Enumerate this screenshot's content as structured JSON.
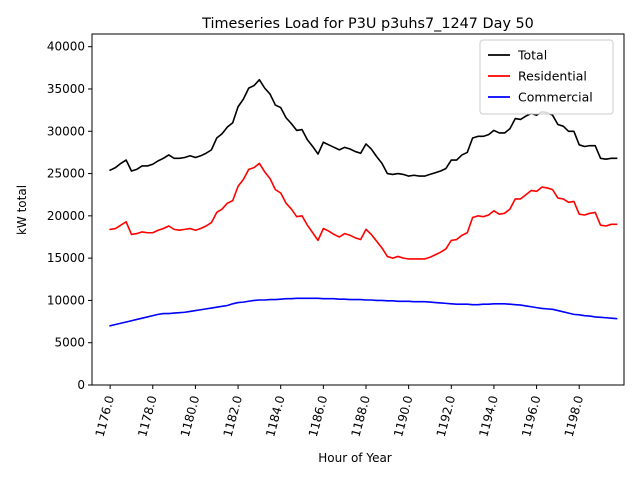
{
  "chart_data": {
    "type": "line",
    "title": "Timeseries Load for P3U p3uhs7_1247  Day 50",
    "xlabel": "Hour of Year",
    "ylabel": "kW total",
    "xlim": [
      1175.15,
      1200.1
    ],
    "ylim": [
      0,
      41500
    ],
    "xticks": [
      1176,
      1178,
      1180,
      1182,
      1184,
      1186,
      1188,
      1190,
      1192,
      1194,
      1196,
      1198
    ],
    "xtick_labels": [
      "1176.0",
      "1178.0",
      "1180.0",
      "1182.0",
      "1184.0",
      "1186.0",
      "1188.0",
      "1190.0",
      "1192.0",
      "1194.0",
      "1196.0",
      "1198.0"
    ],
    "yticks": [
      0,
      5000,
      10000,
      15000,
      20000,
      25000,
      30000,
      35000,
      40000
    ],
    "ytick_labels": [
      "0",
      "5000",
      "10000",
      "15000",
      "20000",
      "25000",
      "30000",
      "35000",
      "40000"
    ],
    "grid": false,
    "legend_position": "top-right",
    "series": [
      {
        "name": "Total",
        "color": "#000000",
        "x": [
          1176.0,
          1176.25,
          1176.5,
          1176.75,
          1177.0,
          1177.25,
          1177.5,
          1177.75,
          1178.0,
          1178.25,
          1178.5,
          1178.75,
          1179.0,
          1179.25,
          1179.5,
          1179.75,
          1180.0,
          1180.25,
          1180.5,
          1180.75,
          1181.0,
          1181.25,
          1181.5,
          1181.75,
          1182.0,
          1182.25,
          1182.5,
          1182.75,
          1183.0,
          1183.25,
          1183.5,
          1183.75,
          1184.0,
          1184.25,
          1184.5,
          1184.75,
          1185.0,
          1185.25,
          1185.5,
          1185.75,
          1186.0,
          1186.25,
          1186.5,
          1186.75,
          1187.0,
          1187.25,
          1187.5,
          1187.75,
          1188.0,
          1188.25,
          1188.5,
          1188.75,
          1189.0,
          1189.25,
          1189.5,
          1189.75,
          1190.0,
          1190.25,
          1190.5,
          1190.75,
          1191.0,
          1191.25,
          1191.5,
          1191.75,
          1192.0,
          1192.25,
          1192.5,
          1192.75,
          1193.0,
          1193.25,
          1193.5,
          1193.75,
          1194.0,
          1194.25,
          1194.5,
          1194.75,
          1195.0,
          1195.25,
          1195.5,
          1195.75,
          1196.0,
          1196.25,
          1196.5,
          1196.75,
          1197.0,
          1197.25,
          1197.5,
          1197.75,
          1198.0,
          1198.25,
          1198.5,
          1198.75,
          1199.0,
          1199.25,
          1199.5,
          1199.75
        ],
        "values": [
          25400,
          25700,
          26200,
          26600,
          25300,
          25500,
          25900,
          25900,
          26100,
          26500,
          26800,
          27200,
          26800,
          26800,
          26900,
          27100,
          26900,
          27100,
          27400,
          27800,
          29200,
          29700,
          30500,
          31000,
          32900,
          33800,
          35100,
          35400,
          36100,
          35100,
          34400,
          33100,
          32800,
          31600,
          30900,
          30100,
          30200,
          29000,
          28200,
          27300,
          28700,
          28400,
          28100,
          27800,
          28100,
          27900,
          27600,
          27400,
          28500,
          27900,
          27000,
          26200,
          25000,
          24900,
          25000,
          24900,
          24700,
          24800,
          24700,
          24700,
          24900,
          25100,
          25300,
          25600,
          26600,
          26600,
          27200,
          27500,
          29200,
          29400,
          29400,
          29600,
          30100,
          29800,
          29800,
          30300,
          31500,
          31400,
          31800,
          32100,
          31900,
          32300,
          32200,
          31900,
          30800,
          30600,
          30000,
          30000,
          28400,
          28200,
          28300,
          28300,
          26800,
          26700,
          26800,
          26800
        ]
      },
      {
        "name": "Residential",
        "color": "#ff0000",
        "x": [
          1176.0,
          1176.25,
          1176.5,
          1176.75,
          1177.0,
          1177.25,
          1177.5,
          1177.75,
          1178.0,
          1178.25,
          1178.5,
          1178.75,
          1179.0,
          1179.25,
          1179.5,
          1179.75,
          1180.0,
          1180.25,
          1180.5,
          1180.75,
          1181.0,
          1181.25,
          1181.5,
          1181.75,
          1182.0,
          1182.25,
          1182.5,
          1182.75,
          1183.0,
          1183.25,
          1183.5,
          1183.75,
          1184.0,
          1184.25,
          1184.5,
          1184.75,
          1185.0,
          1185.25,
          1185.5,
          1185.75,
          1186.0,
          1186.25,
          1186.5,
          1186.75,
          1187.0,
          1187.25,
          1187.5,
          1187.75,
          1188.0,
          1188.25,
          1188.5,
          1188.75,
          1189.0,
          1189.25,
          1189.5,
          1189.75,
          1190.0,
          1190.25,
          1190.5,
          1190.75,
          1191.0,
          1191.25,
          1191.5,
          1191.75,
          1192.0,
          1192.25,
          1192.5,
          1192.75,
          1193.0,
          1193.25,
          1193.5,
          1193.75,
          1194.0,
          1194.25,
          1194.5,
          1194.75,
          1195.0,
          1195.25,
          1195.5,
          1195.75,
          1196.0,
          1196.25,
          1196.5,
          1196.75,
          1197.0,
          1197.25,
          1197.5,
          1197.75,
          1198.0,
          1198.25,
          1198.5,
          1198.75,
          1199.0,
          1199.25,
          1199.5,
          1199.75
        ],
        "values": [
          18400,
          18500,
          18900,
          19300,
          17800,
          17900,
          18100,
          18000,
          18000,
          18300,
          18500,
          18800,
          18400,
          18300,
          18400,
          18500,
          18300,
          18500,
          18800,
          19200,
          20400,
          20800,
          21500,
          21800,
          23500,
          24300,
          25500,
          25700,
          26200,
          25200,
          24400,
          23100,
          22700,
          21500,
          20800,
          19900,
          20000,
          18900,
          18000,
          17100,
          18500,
          18200,
          17800,
          17500,
          17900,
          17700,
          17400,
          17200,
          18400,
          17800,
          17000,
          16200,
          15200,
          15000,
          15200,
          15000,
          14900,
          14900,
          14900,
          14900,
          15100,
          15400,
          15700,
          16100,
          17100,
          17200,
          17700,
          18000,
          19800,
          20000,
          19900,
          20100,
          20600,
          20200,
          20300,
          20800,
          22000,
          22000,
          22500,
          23000,
          22900,
          23400,
          23300,
          23100,
          22100,
          22000,
          21600,
          21700,
          20200,
          20100,
          20300,
          20400,
          18900,
          18800,
          19000,
          19000
        ]
      },
      {
        "name": "Commercial",
        "color": "#0000ff",
        "x": [
          1176.0,
          1176.25,
          1176.5,
          1176.75,
          1177.0,
          1177.25,
          1177.5,
          1177.75,
          1178.0,
          1178.25,
          1178.5,
          1178.75,
          1179.0,
          1179.25,
          1179.5,
          1179.75,
          1180.0,
          1180.25,
          1180.5,
          1180.75,
          1181.0,
          1181.25,
          1181.5,
          1181.75,
          1182.0,
          1182.25,
          1182.5,
          1182.75,
          1183.0,
          1183.25,
          1183.5,
          1183.75,
          1184.0,
          1184.25,
          1184.5,
          1184.75,
          1185.0,
          1185.25,
          1185.5,
          1185.75,
          1186.0,
          1186.25,
          1186.5,
          1186.75,
          1187.0,
          1187.25,
          1187.5,
          1187.75,
          1188.0,
          1188.25,
          1188.5,
          1188.75,
          1189.0,
          1189.25,
          1189.5,
          1189.75,
          1190.0,
          1190.25,
          1190.5,
          1190.75,
          1191.0,
          1191.25,
          1191.5,
          1191.75,
          1192.0,
          1192.25,
          1192.5,
          1192.75,
          1193.0,
          1193.25,
          1193.5,
          1193.75,
          1194.0,
          1194.25,
          1194.5,
          1194.75,
          1195.0,
          1195.25,
          1195.5,
          1195.75,
          1196.0,
          1196.25,
          1196.5,
          1196.75,
          1197.0,
          1197.25,
          1197.5,
          1197.75,
          1198.0,
          1198.25,
          1198.5,
          1198.75,
          1199.0,
          1199.25,
          1199.5,
          1199.75
        ],
        "values": [
          7000,
          7150,
          7300,
          7450,
          7600,
          7750,
          7900,
          8050,
          8200,
          8350,
          8450,
          8450,
          8500,
          8550,
          8600,
          8700,
          8800,
          8900,
          9000,
          9100,
          9200,
          9300,
          9400,
          9600,
          9750,
          9800,
          9900,
          10000,
          10050,
          10050,
          10100,
          10100,
          10150,
          10200,
          10200,
          10250,
          10250,
          10250,
          10250,
          10250,
          10200,
          10200,
          10200,
          10150,
          10150,
          10100,
          10100,
          10100,
          10050,
          10050,
          10000,
          10000,
          9950,
          9950,
          9900,
          9900,
          9900,
          9850,
          9850,
          9850,
          9800,
          9750,
          9700,
          9650,
          9600,
          9550,
          9550,
          9550,
          9500,
          9500,
          9550,
          9550,
          9600,
          9600,
          9600,
          9550,
          9500,
          9450,
          9350,
          9250,
          9150,
          9050,
          9000,
          8950,
          8800,
          8650,
          8500,
          8350,
          8300,
          8200,
          8150,
          8050,
          8000,
          7950,
          7900,
          7850
        ]
      }
    ]
  }
}
